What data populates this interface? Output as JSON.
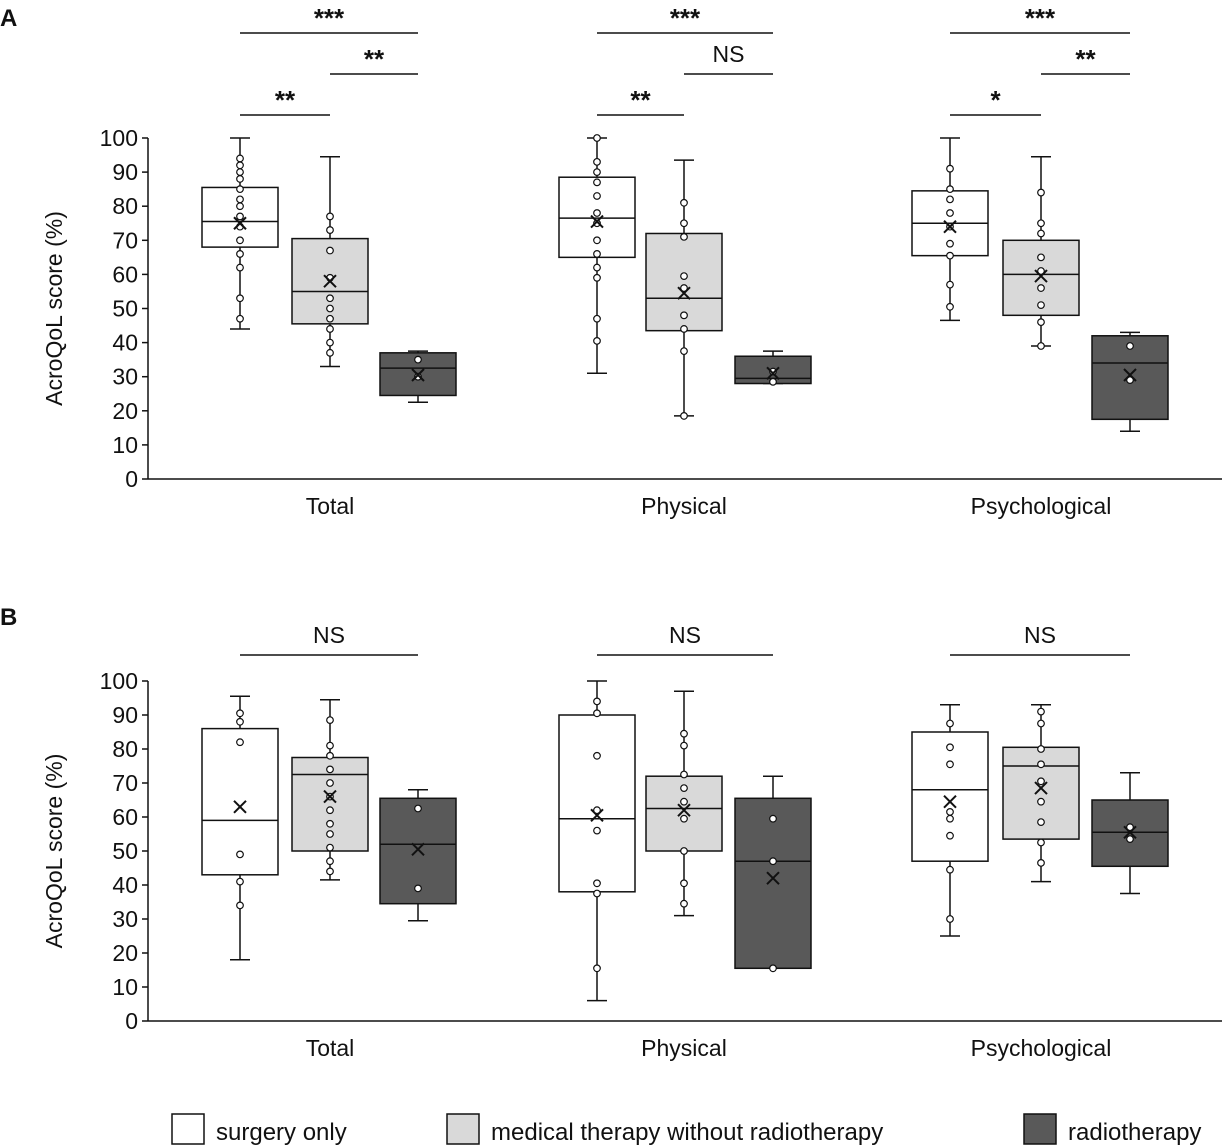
{
  "colors": {
    "surgery_fill": "#ffffff",
    "medical_fill": "#d9d9d9",
    "radio_fill": "#595959",
    "stroke": "#111111",
    "point_fill": "#ffffff"
  },
  "legend": {
    "entries": [
      {
        "name": "surgery only",
        "color": "#ffffff"
      },
      {
        "name": "medical therapy without radiotherapy",
        "color": "#d9d9d9"
      },
      {
        "name": "radiotherapy",
        "color": "#595959"
      }
    ],
    "placement": "bottom"
  },
  "chart_data": [
    {
      "panel": "A",
      "type": "boxplot",
      "ylabel": "AcroQoL score (%)",
      "ylim": [
        0,
        100
      ],
      "yticks": [
        0,
        10,
        20,
        30,
        40,
        50,
        60,
        70,
        80,
        90,
        100
      ],
      "categories": [
        "Total",
        "Physical",
        "Psychological"
      ],
      "series_names": [
        "surgery only",
        "medical therapy without radiotherapy",
        "radiotherapy"
      ],
      "groups": [
        {
          "category": "Total",
          "boxes": [
            {
              "series": "surgery only",
              "min": 44,
              "q1": 68,
              "median": 75.5,
              "q3": 85.5,
              "max": 100,
              "mean": 75,
              "points": [
                47,
                53,
                62,
                66,
                70,
                74,
                77,
                80,
                82,
                85,
                88,
                90,
                92,
                94
              ]
            },
            {
              "series": "medical therapy without radiotherapy",
              "min": 33,
              "q1": 45.5,
              "median": 55,
              "q3": 70.5,
              "max": 94.5,
              "mean": 58,
              "points": [
                37,
                40,
                44,
                47,
                50,
                53,
                59,
                67,
                73,
                77
              ]
            },
            {
              "series": "radiotherapy",
              "min": 22.5,
              "q1": 24.5,
              "median": 32.5,
              "q3": 37,
              "max": 37.5,
              "mean": 30.5,
              "points": [
                30,
                35
              ]
            }
          ],
          "comparisons": [
            {
              "label": "***",
              "between": [
                0,
                2
              ],
              "level": 3
            },
            {
              "label": "**",
              "between": [
                1,
                2
              ],
              "level": 2
            },
            {
              "label": "**",
              "between": [
                0,
                1
              ],
              "level": 1
            }
          ]
        },
        {
          "category": "Physical",
          "boxes": [
            {
              "series": "surgery only",
              "min": 31,
              "q1": 65,
              "median": 76.5,
              "q3": 88.5,
              "max": 100,
              "mean": 75.5,
              "points": [
                40.5,
                47,
                59,
                62,
                66,
                70,
                75,
                78,
                83,
                87,
                90,
                93,
                100
              ]
            },
            {
              "series": "medical therapy without radiotherapy",
              "min": 18.5,
              "q1": 43.5,
              "median": 53,
              "q3": 72,
              "max": 93.5,
              "mean": 54.5,
              "points": [
                18.5,
                37.5,
                44,
                48,
                56,
                59.5,
                71,
                75,
                81
              ]
            },
            {
              "series": "radiotherapy",
              "min": 28,
              "q1": 28,
              "median": 29.5,
              "q3": 36,
              "max": 37.5,
              "mean": 31,
              "points": [
                28.5,
                31.5
              ]
            }
          ],
          "comparisons": [
            {
              "label": "***",
              "between": [
                0,
                2
              ],
              "level": 3
            },
            {
              "label": "NS",
              "between": [
                1,
                2
              ],
              "level": 2
            },
            {
              "label": "**",
              "between": [
                0,
                1
              ],
              "level": 1
            }
          ]
        },
        {
          "category": "Psychological",
          "boxes": [
            {
              "series": "surgery only",
              "min": 46.5,
              "q1": 65.5,
              "median": 75,
              "q3": 84.5,
              "max": 100,
              "mean": 74,
              "points": [
                50.5,
                57,
                65.5,
                69,
                74,
                78,
                82,
                85,
                91
              ]
            },
            {
              "series": "medical therapy without radiotherapy",
              "min": 39,
              "q1": 48,
              "median": 60,
              "q3": 70,
              "max": 94.5,
              "mean": 59.5,
              "points": [
                39,
                46,
                51,
                56,
                61,
                65,
                72,
                75,
                84
              ]
            },
            {
              "series": "radiotherapy",
              "min": 14,
              "q1": 17.5,
              "median": 34,
              "q3": 42,
              "max": 43,
              "mean": 30.5,
              "points": [
                29,
                39
              ]
            }
          ],
          "comparisons": [
            {
              "label": "***",
              "between": [
                0,
                2
              ],
              "level": 3
            },
            {
              "label": "**",
              "between": [
                1,
                2
              ],
              "level": 2
            },
            {
              "label": "*",
              "between": [
                0,
                1
              ],
              "level": 1
            }
          ]
        }
      ]
    },
    {
      "panel": "B",
      "type": "boxplot",
      "ylabel": "AcroQoL score (%)",
      "ylim": [
        0,
        100
      ],
      "yticks": [
        0,
        10,
        20,
        30,
        40,
        50,
        60,
        70,
        80,
        90,
        100
      ],
      "categories": [
        "Total",
        "Physical",
        "Psychological"
      ],
      "series_names": [
        "surgery only",
        "medical therapy without radiotherapy",
        "radiotherapy"
      ],
      "groups": [
        {
          "category": "Total",
          "boxes": [
            {
              "series": "surgery only",
              "min": 18,
              "q1": 43,
              "median": 59,
              "q3": 86,
              "max": 95.5,
              "mean": 63,
              "points": [
                34,
                41,
                49,
                82,
                88,
                90.5
              ]
            },
            {
              "series": "medical therapy without radiotherapy",
              "min": 41.5,
              "q1": 50,
              "median": 72.5,
              "q3": 77.5,
              "max": 94.5,
              "mean": 66,
              "points": [
                44,
                47,
                51,
                55,
                58,
                62,
                66,
                70,
                74,
                78,
                81,
                88.5
              ]
            },
            {
              "series": "radiotherapy",
              "min": 29.5,
              "q1": 34.5,
              "median": 52,
              "q3": 65.5,
              "max": 68,
              "mean": 50.5,
              "points": [
                39,
                62.5
              ]
            }
          ],
          "comparisons": [
            {
              "label": "NS",
              "between": [
                0,
                2
              ],
              "level": 1
            }
          ]
        },
        {
          "category": "Physical",
          "boxes": [
            {
              "series": "surgery only",
              "min": 6,
              "q1": 38,
              "median": 59.5,
              "q3": 90,
              "max": 100,
              "mean": 60.5,
              "points": [
                15.5,
                37.5,
                40.5,
                56,
                62,
                78,
                90.5,
                94
              ]
            },
            {
              "series": "medical therapy without radiotherapy",
              "min": 31,
              "q1": 50,
              "median": 62.5,
              "q3": 72,
              "max": 97,
              "mean": 62,
              "points": [
                34.5,
                40.5,
                50,
                59.5,
                64.5,
                68.5,
                72.5,
                81,
                84.5
              ]
            },
            {
              "series": "radiotherapy",
              "min": 15.5,
              "q1": 15.5,
              "median": 47,
              "q3": 65.5,
              "max": 72,
              "mean": 42,
              "points": [
                15.5,
                47,
                59.5
              ]
            }
          ],
          "comparisons": [
            {
              "label": "NS",
              "between": [
                0,
                2
              ],
              "level": 1
            }
          ]
        },
        {
          "category": "Psychological",
          "boxes": [
            {
              "series": "surgery only",
              "min": 25,
              "q1": 47,
              "median": 68,
              "q3": 85,
              "max": 93,
              "mean": 64.5,
              "points": [
                30,
                44.5,
                54.5,
                59.5,
                61.5,
                75.5,
                80.5,
                87.5
              ]
            },
            {
              "series": "medical therapy without radiotherapy",
              "min": 41,
              "q1": 53.5,
              "median": 75,
              "q3": 80.5,
              "max": 93,
              "mean": 68.5,
              "points": [
                46.5,
                52.5,
                58.5,
                64.5,
                70.5,
                75.5,
                80,
                87.5,
                91
              ]
            },
            {
              "series": "radiotherapy",
              "min": 37.5,
              "q1": 45.5,
              "median": 55.5,
              "q3": 65,
              "max": 73,
              "mean": 55.5,
              "points": [
                53.5,
                57
              ]
            }
          ],
          "comparisons": [
            {
              "label": "NS",
              "between": [
                0,
                2
              ],
              "level": 1
            }
          ]
        }
      ]
    }
  ]
}
